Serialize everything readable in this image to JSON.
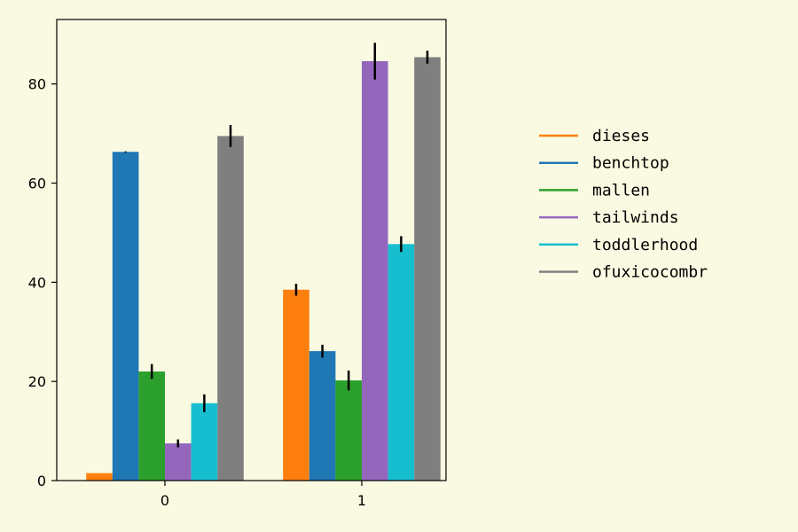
{
  "chart_data": {
    "type": "bar",
    "categories": [
      "0",
      "1"
    ],
    "ylim": [
      0,
      93
    ],
    "yticks": [
      0,
      20,
      40,
      60,
      80
    ],
    "grid": false,
    "legend_position": "right",
    "series": [
      {
        "name": "dieses",
        "color": "#ff7f0e",
        "values": [
          1.5,
          38.5
        ],
        "errors": [
          0,
          1.2
        ]
      },
      {
        "name": "benchtop",
        "color": "#1f77b4",
        "values": [
          66.3,
          26.1
        ],
        "errors": [
          0.1,
          1.3
        ]
      },
      {
        "name": "mallen",
        "color": "#2ca02c",
        "values": [
          22.0,
          20.2
        ],
        "errors": [
          1.5,
          2.0
        ]
      },
      {
        "name": "tailwinds",
        "color": "#9467bd",
        "values": [
          7.5,
          84.6
        ],
        "errors": [
          0.8,
          3.7
        ]
      },
      {
        "name": "toddlerhood",
        "color": "#17becf",
        "values": [
          15.6,
          47.7
        ],
        "errors": [
          1.8,
          1.6
        ]
      },
      {
        "name": "ofuxicocombr",
        "color": "#7f7f7f",
        "values": [
          69.5,
          85.4
        ],
        "errors": [
          2.2,
          1.3
        ]
      }
    ]
  }
}
